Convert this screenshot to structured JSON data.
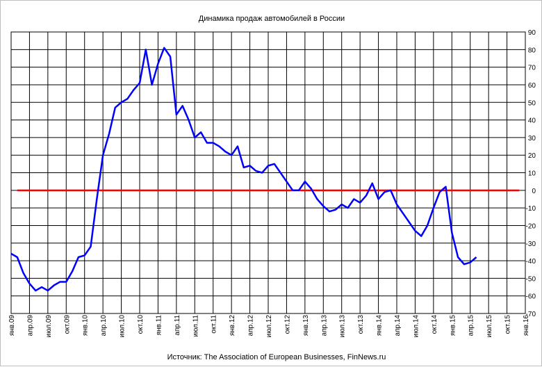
{
  "chart_data": {
    "type": "line",
    "title": "Динамика продаж автомобилей в России",
    "source": "Источник:  The Association of European Businesses, FinNews.ru",
    "x_tick_labels": [
      "янв.09",
      "апр.09",
      "июл.09",
      "окт.09",
      "янв.10",
      "апр.10",
      "июл.10",
      "окт.10",
      "янв.11",
      "апр.11",
      "июл.11",
      "окт.11",
      "янв.12",
      "апр.12",
      "июл.12",
      "окт.12",
      "янв.13",
      "апр.13",
      "июл.13",
      "окт.13",
      "янв.14",
      "апр.14",
      "июл.14",
      "окт.14",
      "янв.15",
      "апр.15",
      "июл.15",
      "окт.15",
      "янв.16"
    ],
    "y_tick_labels": [
      "90",
      "80",
      "70",
      "60",
      "50",
      "40",
      "30",
      "20",
      "10",
      "0",
      "-10",
      "-20",
      "-30",
      "-40",
      "-50",
      "-60",
      "-70"
    ],
    "ylim": [
      -70,
      90
    ],
    "y_axis_position": "right",
    "grid": true,
    "colors": {
      "series": "#0000ff",
      "baseline": "#ff0000",
      "grid": "#000000"
    },
    "series": [
      {
        "x": [
          "янв.09",
          "фев.09",
          "мар.09",
          "апр.09",
          "май.09",
          "июн.09",
          "июл.09",
          "авг.09",
          "сен.09",
          "окт.09",
          "ноя.09",
          "дек.09",
          "янв.10",
          "фев.10",
          "мар.10",
          "апр.10",
          "май.10",
          "июн.10",
          "июл.10",
          "авг.10",
          "сен.10",
          "окт.10",
          "ноя.10",
          "дек.10",
          "янв.11",
          "фев.11",
          "мар.11",
          "апр.11",
          "май.11",
          "июн.11",
          "июл.11",
          "авг.11",
          "сен.11",
          "окт.11",
          "ноя.11",
          "дек.11",
          "янв.12",
          "фев.12",
          "мар.12",
          "апр.12",
          "май.12",
          "июн.12",
          "июл.12",
          "авг.12",
          "сен.12",
          "окт.12",
          "ноя.12",
          "дек.12",
          "янв.13",
          "фев.13",
          "мар.13",
          "апр.13",
          "май.13",
          "июн.13",
          "июл.13",
          "авг.13",
          "сен.13",
          "окт.13",
          "ноя.13",
          "дек.13",
          "янв.14",
          "фев.14",
          "мар.14",
          "апр.14",
          "май.14",
          "июн.14",
          "июл.14",
          "авг.14",
          "сен.14",
          "окт.14",
          "ноя.14",
          "дек.14",
          "янв.15",
          "фев.15",
          "мар.15",
          "апр.15",
          "май.15"
        ],
        "values": [
          -36,
          -38,
          -47,
          -53,
          -57,
          -55,
          -57,
          -54,
          -52,
          -52,
          -46,
          -38,
          -37,
          -32,
          -5,
          20,
          32,
          47,
          50,
          52,
          57,
          61,
          80,
          60,
          72,
          81,
          76,
          43,
          48,
          40,
          30,
          33,
          27,
          27,
          25,
          22,
          20,
          25,
          13,
          14,
          11,
          10,
          14,
          15,
          10,
          5,
          0,
          0,
          5,
          1,
          -5,
          -9,
          -12,
          -11,
          -8,
          -10,
          -5,
          -7,
          -3,
          4,
          -5,
          -1,
          0,
          -8,
          -13,
          -18,
          -23,
          -26,
          -20,
          -10,
          -1,
          2,
          -24,
          -38,
          -42,
          -41,
          -38
        ]
      }
    ],
    "reference_lines": [
      {
        "y": 0,
        "from": "фев.09",
        "to": "дек.15"
      }
    ]
  }
}
